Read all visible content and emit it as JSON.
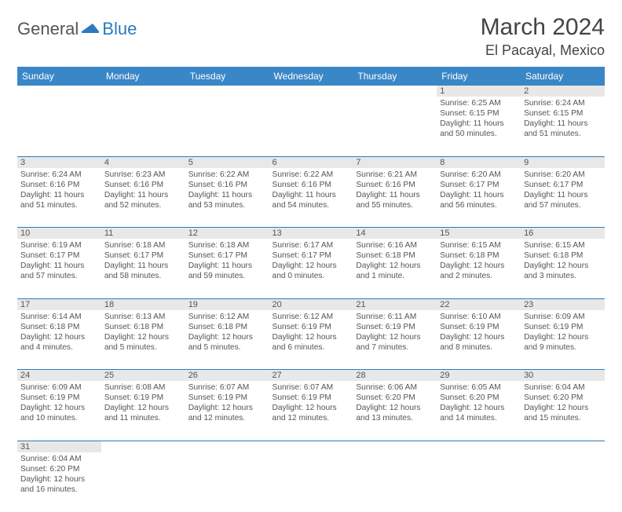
{
  "logo": {
    "part1": "General",
    "part2": "Blue"
  },
  "title": "March 2024",
  "location": "El Pacayal, Mexico",
  "colors": {
    "header_bg": "#3a87c7",
    "border": "#2b7bbd",
    "daynum_bg": "#e8e8e8",
    "text": "#555555",
    "logo_blue": "#2b7bbd"
  },
  "day_headers": [
    "Sunday",
    "Monday",
    "Tuesday",
    "Wednesday",
    "Thursday",
    "Friday",
    "Saturday"
  ],
  "weeks": [
    [
      null,
      null,
      null,
      null,
      null,
      {
        "n": "1",
        "sr": "6:25 AM",
        "ss": "6:15 PM",
        "dl": "11 hours and 50 minutes."
      },
      {
        "n": "2",
        "sr": "6:24 AM",
        "ss": "6:15 PM",
        "dl": "11 hours and 51 minutes."
      }
    ],
    [
      {
        "n": "3",
        "sr": "6:24 AM",
        "ss": "6:16 PM",
        "dl": "11 hours and 51 minutes."
      },
      {
        "n": "4",
        "sr": "6:23 AM",
        "ss": "6:16 PM",
        "dl": "11 hours and 52 minutes."
      },
      {
        "n": "5",
        "sr": "6:22 AM",
        "ss": "6:16 PM",
        "dl": "11 hours and 53 minutes."
      },
      {
        "n": "6",
        "sr": "6:22 AM",
        "ss": "6:16 PM",
        "dl": "11 hours and 54 minutes."
      },
      {
        "n": "7",
        "sr": "6:21 AM",
        "ss": "6:16 PM",
        "dl": "11 hours and 55 minutes."
      },
      {
        "n": "8",
        "sr": "6:20 AM",
        "ss": "6:17 PM",
        "dl": "11 hours and 56 minutes."
      },
      {
        "n": "9",
        "sr": "6:20 AM",
        "ss": "6:17 PM",
        "dl": "11 hours and 57 minutes."
      }
    ],
    [
      {
        "n": "10",
        "sr": "6:19 AM",
        "ss": "6:17 PM",
        "dl": "11 hours and 57 minutes."
      },
      {
        "n": "11",
        "sr": "6:18 AM",
        "ss": "6:17 PM",
        "dl": "11 hours and 58 minutes."
      },
      {
        "n": "12",
        "sr": "6:18 AM",
        "ss": "6:17 PM",
        "dl": "11 hours and 59 minutes."
      },
      {
        "n": "13",
        "sr": "6:17 AM",
        "ss": "6:17 PM",
        "dl": "12 hours and 0 minutes."
      },
      {
        "n": "14",
        "sr": "6:16 AM",
        "ss": "6:18 PM",
        "dl": "12 hours and 1 minute."
      },
      {
        "n": "15",
        "sr": "6:15 AM",
        "ss": "6:18 PM",
        "dl": "12 hours and 2 minutes."
      },
      {
        "n": "16",
        "sr": "6:15 AM",
        "ss": "6:18 PM",
        "dl": "12 hours and 3 minutes."
      }
    ],
    [
      {
        "n": "17",
        "sr": "6:14 AM",
        "ss": "6:18 PM",
        "dl": "12 hours and 4 minutes."
      },
      {
        "n": "18",
        "sr": "6:13 AM",
        "ss": "6:18 PM",
        "dl": "12 hours and 5 minutes."
      },
      {
        "n": "19",
        "sr": "6:12 AM",
        "ss": "6:18 PM",
        "dl": "12 hours and 5 minutes."
      },
      {
        "n": "20",
        "sr": "6:12 AM",
        "ss": "6:19 PM",
        "dl": "12 hours and 6 minutes."
      },
      {
        "n": "21",
        "sr": "6:11 AM",
        "ss": "6:19 PM",
        "dl": "12 hours and 7 minutes."
      },
      {
        "n": "22",
        "sr": "6:10 AM",
        "ss": "6:19 PM",
        "dl": "12 hours and 8 minutes."
      },
      {
        "n": "23",
        "sr": "6:09 AM",
        "ss": "6:19 PM",
        "dl": "12 hours and 9 minutes."
      }
    ],
    [
      {
        "n": "24",
        "sr": "6:09 AM",
        "ss": "6:19 PM",
        "dl": "12 hours and 10 minutes."
      },
      {
        "n": "25",
        "sr": "6:08 AM",
        "ss": "6:19 PM",
        "dl": "12 hours and 11 minutes."
      },
      {
        "n": "26",
        "sr": "6:07 AM",
        "ss": "6:19 PM",
        "dl": "12 hours and 12 minutes."
      },
      {
        "n": "27",
        "sr": "6:07 AM",
        "ss": "6:19 PM",
        "dl": "12 hours and 12 minutes."
      },
      {
        "n": "28",
        "sr": "6:06 AM",
        "ss": "6:20 PM",
        "dl": "12 hours and 13 minutes."
      },
      {
        "n": "29",
        "sr": "6:05 AM",
        "ss": "6:20 PM",
        "dl": "12 hours and 14 minutes."
      },
      {
        "n": "30",
        "sr": "6:04 AM",
        "ss": "6:20 PM",
        "dl": "12 hours and 15 minutes."
      }
    ],
    [
      {
        "n": "31",
        "sr": "6:04 AM",
        "ss": "6:20 PM",
        "dl": "12 hours and 16 minutes."
      },
      null,
      null,
      null,
      null,
      null,
      null
    ]
  ],
  "labels": {
    "sunrise": "Sunrise:",
    "sunset": "Sunset:",
    "daylight": "Daylight:"
  }
}
